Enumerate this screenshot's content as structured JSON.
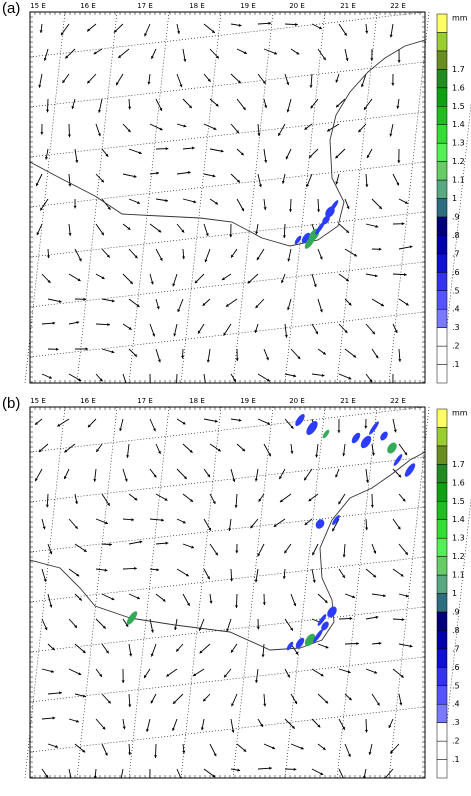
{
  "panels": [
    {
      "label": "(a)",
      "lon_labels": [
        "15 E",
        "16 E",
        "17 E",
        "18 E",
        "19 E",
        "20 E",
        "21 E",
        "22 E"
      ],
      "colorbar": {
        "unit": "mm",
        "labels": [
          ".1",
          ".2",
          ".3",
          ".4",
          ".5",
          ".6",
          ".7",
          ".8",
          ".9",
          "1",
          "1.1",
          "1.2",
          "1.3",
          "1.4",
          "1.5",
          "1.6",
          "1.7"
        ]
      }
    },
    {
      "label": "(b)",
      "lon_labels": [
        "15 E",
        "16 E",
        "17 E",
        "18 E",
        "19 E",
        "20 E",
        "21 E",
        "22 E"
      ],
      "colorbar": {
        "unit": "mm",
        "labels": [
          ".1",
          ".2",
          ".3",
          ".4",
          ".5",
          ".6",
          ".7",
          ".8",
          ".9",
          "1",
          "1.1",
          "1.2",
          "1.3",
          "1.4",
          "1.5",
          "1.6",
          "1.7"
        ]
      }
    }
  ]
}
